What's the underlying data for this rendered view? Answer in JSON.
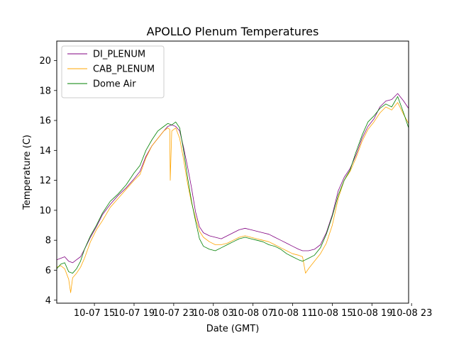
{
  "chart_data": {
    "type": "line",
    "title": "APOLLO Plenum Temperatures",
    "xlabel": "Date (GMT)",
    "ylabel": "Temperature (C)",
    "xlim": [
      11.2,
      46.7
    ],
    "ylim": [
      3.8,
      21.3
    ],
    "grid": false,
    "legend_position": "top-left",
    "x_ticks": [
      {
        "value": 15,
        "label": "10-07 15"
      },
      {
        "value": 19,
        "label": "10-07 19"
      },
      {
        "value": 23,
        "label": "10-07 23"
      },
      {
        "value": 27,
        "label": "10-08 03"
      },
      {
        "value": 31,
        "label": "10-08 07"
      },
      {
        "value": 35,
        "label": "10-08 11"
      },
      {
        "value": 39,
        "label": "10-08 15"
      },
      {
        "value": 43,
        "label": "10-08 19"
      },
      {
        "value": 47,
        "label": "10-08 23"
      }
    ],
    "y_ticks": [
      {
        "value": 4,
        "label": "4"
      },
      {
        "value": 6,
        "label": "6"
      },
      {
        "value": 8,
        "label": "8"
      },
      {
        "value": 10,
        "label": "10"
      },
      {
        "value": 12,
        "label": "12"
      },
      {
        "value": 14,
        "label": "14"
      },
      {
        "value": 16,
        "label": "16"
      },
      {
        "value": 18,
        "label": "18"
      },
      {
        "value": 20,
        "label": "20"
      }
    ],
    "series": [
      {
        "name": "DI_PLENUM",
        "color": "#800080",
        "x": [
          11.2,
          11.6,
          12.0,
          12.4,
          12.8,
          13.2,
          13.6,
          14.0,
          14.6,
          15.2,
          15.8,
          16.6,
          17.4,
          18.2,
          19.0,
          19.6,
          20.2,
          20.8,
          21.4,
          22.0,
          22.4,
          22.8,
          23.2,
          23.6,
          24.0,
          24.4,
          24.8,
          25.2,
          25.6,
          26.0,
          26.6,
          27.2,
          27.8,
          28.4,
          29.0,
          29.6,
          30.2,
          30.8,
          31.4,
          32.0,
          32.6,
          33.2,
          33.8,
          34.4,
          35.0,
          35.6,
          36.0,
          36.6,
          37.2,
          37.8,
          38.4,
          39.0,
          39.6,
          40.2,
          40.8,
          41.4,
          42.0,
          42.6,
          43.2,
          43.8,
          44.4,
          45.0,
          45.6,
          46.2,
          46.7
        ],
        "y": [
          6.7,
          6.8,
          6.9,
          6.6,
          6.5,
          6.7,
          6.9,
          7.4,
          8.2,
          8.9,
          9.7,
          10.4,
          11.0,
          11.5,
          12.1,
          12.6,
          13.6,
          14.3,
          14.8,
          15.3,
          15.6,
          15.7,
          15.6,
          15.3,
          14.2,
          12.9,
          11.5,
          9.9,
          8.9,
          8.5,
          8.3,
          8.2,
          8.1,
          8.3,
          8.5,
          8.7,
          8.8,
          8.7,
          8.6,
          8.5,
          8.4,
          8.2,
          8.0,
          7.8,
          7.6,
          7.4,
          7.3,
          7.3,
          7.4,
          7.7,
          8.5,
          9.7,
          11.3,
          12.2,
          12.8,
          13.7,
          14.8,
          15.6,
          16.1,
          16.9,
          17.3,
          17.4,
          17.8,
          17.3,
          16.8
        ]
      },
      {
        "name": "CAB_PLENUM",
        "color": "#ffa500",
        "x": [
          11.2,
          11.6,
          12.0,
          12.4,
          12.6,
          12.8,
          13.2,
          13.6,
          14.0,
          14.6,
          15.2,
          15.8,
          16.6,
          17.4,
          18.2,
          19.0,
          19.6,
          20.2,
          20.8,
          21.4,
          22.0,
          22.4,
          22.6,
          22.65,
          22.8,
          23.2,
          23.6,
          24.0,
          24.4,
          24.8,
          25.2,
          25.6,
          26.0,
          26.6,
          27.2,
          27.8,
          28.4,
          29.0,
          29.6,
          30.2,
          30.8,
          31.4,
          32.0,
          32.6,
          33.2,
          33.8,
          34.4,
          35.0,
          35.6,
          36.0,
          36.3,
          36.6,
          37.2,
          37.8,
          38.4,
          39.0,
          39.6,
          40.2,
          40.8,
          41.4,
          42.0,
          42.6,
          43.2,
          43.8,
          44.4,
          45.0,
          45.6,
          46.2,
          46.7
        ],
        "y": [
          6.2,
          6.3,
          6.1,
          5.4,
          4.5,
          5.5,
          5.8,
          6.2,
          6.8,
          7.9,
          8.7,
          9.3,
          10.2,
          10.8,
          11.4,
          12.0,
          12.4,
          13.5,
          14.3,
          14.8,
          15.3,
          15.5,
          15.4,
          12.0,
          15.3,
          15.5,
          14.8,
          13.4,
          11.8,
          10.5,
          9.5,
          8.6,
          8.2,
          7.9,
          7.7,
          7.7,
          7.8,
          8.0,
          8.2,
          8.3,
          8.2,
          8.1,
          8.0,
          7.9,
          7.7,
          7.5,
          7.3,
          7.1,
          7.0,
          6.9,
          5.8,
          6.1,
          6.6,
          7.1,
          7.8,
          9.0,
          10.8,
          12.0,
          12.6,
          13.5,
          14.6,
          15.4,
          15.9,
          16.5,
          16.9,
          16.7,
          17.2,
          16.4,
          15.8
        ]
      },
      {
        "name": "Dome Air",
        "color": "#008000",
        "x": [
          11.2,
          11.6,
          12.0,
          12.4,
          12.8,
          13.2,
          13.6,
          14.0,
          14.6,
          15.2,
          15.8,
          16.6,
          17.4,
          18.2,
          19.0,
          19.6,
          20.2,
          20.8,
          21.4,
          22.0,
          22.4,
          22.8,
          23.2,
          23.6,
          24.0,
          24.4,
          24.8,
          25.2,
          25.6,
          26.0,
          26.6,
          27.2,
          27.8,
          28.4,
          29.0,
          29.6,
          30.2,
          30.8,
          31.4,
          32.0,
          32.6,
          33.2,
          33.8,
          34.4,
          35.0,
          35.6,
          36.0,
          36.6,
          37.2,
          37.8,
          38.4,
          39.0,
          39.6,
          40.2,
          40.8,
          41.4,
          42.0,
          42.6,
          43.2,
          43.8,
          44.4,
          45.0,
          45.6,
          46.2,
          46.7
        ],
        "y": [
          6.1,
          6.4,
          6.5,
          5.9,
          5.8,
          6.1,
          6.6,
          7.4,
          8.3,
          9.0,
          9.8,
          10.6,
          11.1,
          11.7,
          12.5,
          13.0,
          14.0,
          14.7,
          15.3,
          15.6,
          15.8,
          15.7,
          15.9,
          15.5,
          14.0,
          12.2,
          10.6,
          9.3,
          8.1,
          7.6,
          7.4,
          7.3,
          7.5,
          7.7,
          7.9,
          8.1,
          8.2,
          8.1,
          8.0,
          7.9,
          7.7,
          7.6,
          7.4,
          7.1,
          6.9,
          6.7,
          6.6,
          6.8,
          7.0,
          7.5,
          8.4,
          9.6,
          11.0,
          12.0,
          12.7,
          13.9,
          15.0,
          15.9,
          16.3,
          16.8,
          17.1,
          16.9,
          17.6,
          16.5,
          15.5
        ]
      }
    ]
  }
}
